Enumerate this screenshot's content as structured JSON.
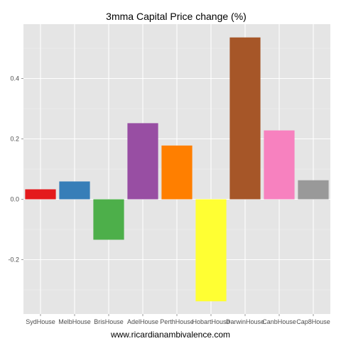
{
  "chart_data": {
    "type": "bar",
    "title": "3mma Capital Price change (%)",
    "xlabel": "",
    "ylabel": "",
    "categories": [
      "SydHouse",
      "MelbHouse",
      "BrisHouse",
      "AdelHouse",
      "PerthHouse",
      "HobartHouse",
      "DarwinHouse",
      "CanbHouse",
      "Cap8House"
    ],
    "values": [
      0.033,
      0.059,
      -0.134,
      0.252,
      0.178,
      -0.338,
      0.536,
      0.228,
      0.063
    ],
    "colors": [
      "#e41a1c",
      "#377eb8",
      "#4daf4a",
      "#984ea3",
      "#ff7f00",
      "#ffff33",
      "#a65628",
      "#f781bf",
      "#999999"
    ],
    "ylim": [
      -0.38,
      0.58
    ],
    "yticks": [
      -0.2,
      0.0,
      0.2,
      0.4
    ],
    "ytick_labels": [
      "-0.2",
      "0.0",
      "0.2",
      "0.4"
    ],
    "grid": true,
    "panel_background": "#e5e5e5",
    "grid_color": "#ffffff"
  },
  "caption": "www.ricardianambivalence.com"
}
